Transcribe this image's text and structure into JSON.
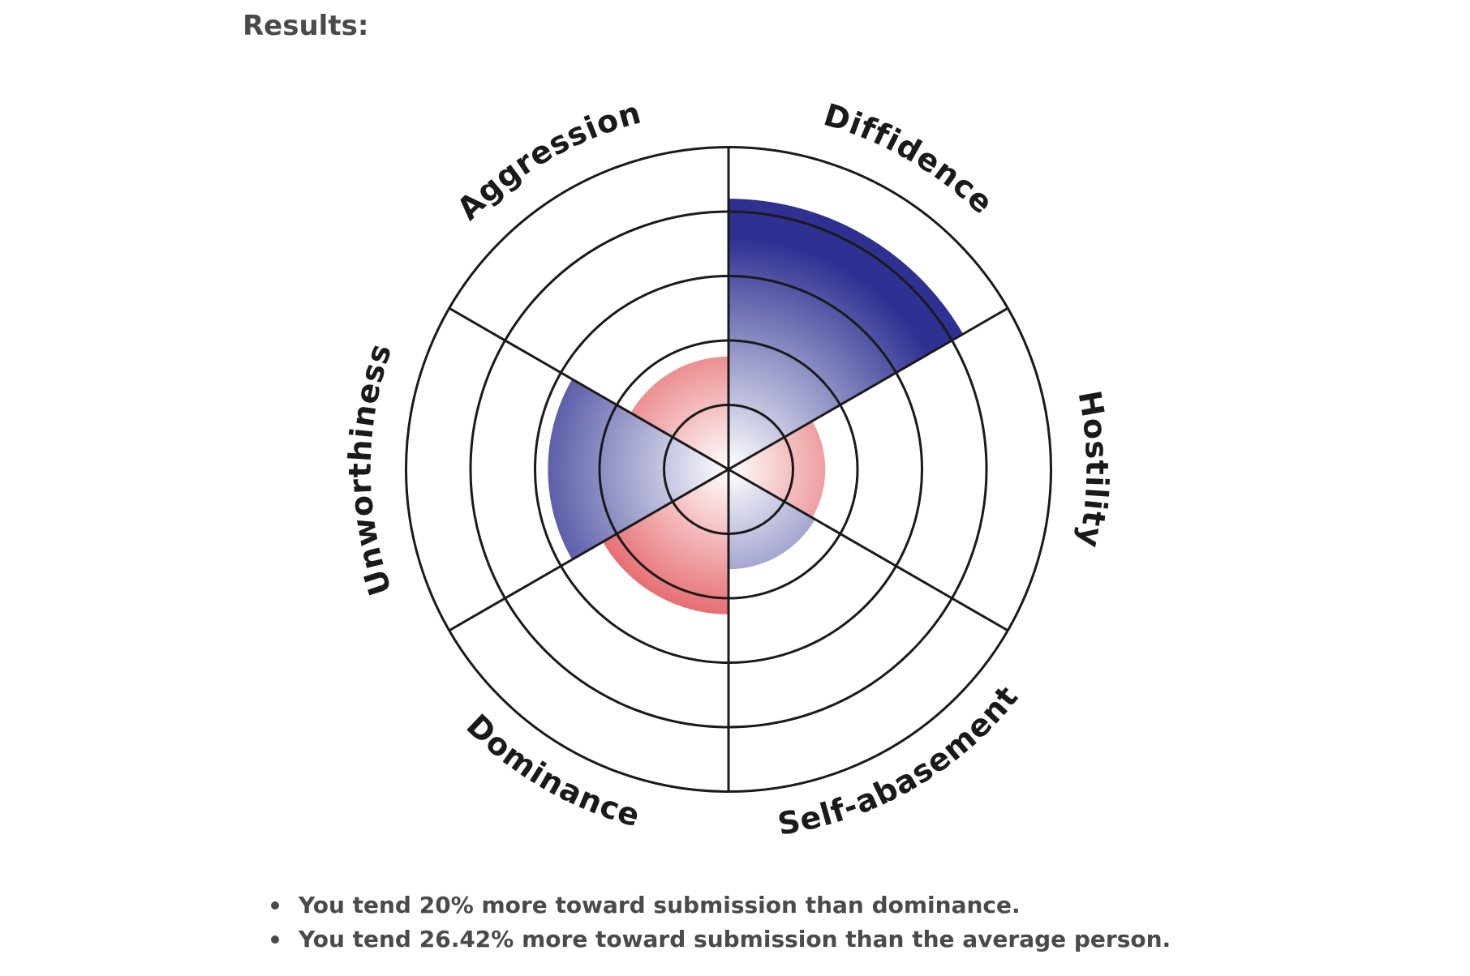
{
  "heading": "Results:",
  "chart_data": {
    "type": "polar",
    "rings": 5,
    "colors": {
      "submission": "#2e3192",
      "dominance": "#d7181f",
      "outline": "#1a1a1a"
    },
    "sectors": [
      {
        "name": "Diffidence",
        "value": 4.2,
        "color": "submission"
      },
      {
        "name": "Hostility",
        "value": 1.5,
        "color": "dominance"
      },
      {
        "name": "Self-abasement",
        "value": 1.55,
        "color": "submission"
      },
      {
        "name": "Dominance",
        "value": 2.25,
        "color": "dominance"
      },
      {
        "name": "Unworthiness",
        "value": 2.8,
        "color": "submission"
      },
      {
        "name": "Aggression",
        "value": 1.75,
        "color": "dominance"
      }
    ]
  },
  "summary": [
    "You tend 20% more toward submission than dominance.",
    "You tend 26.42% more toward submission than the average person."
  ]
}
